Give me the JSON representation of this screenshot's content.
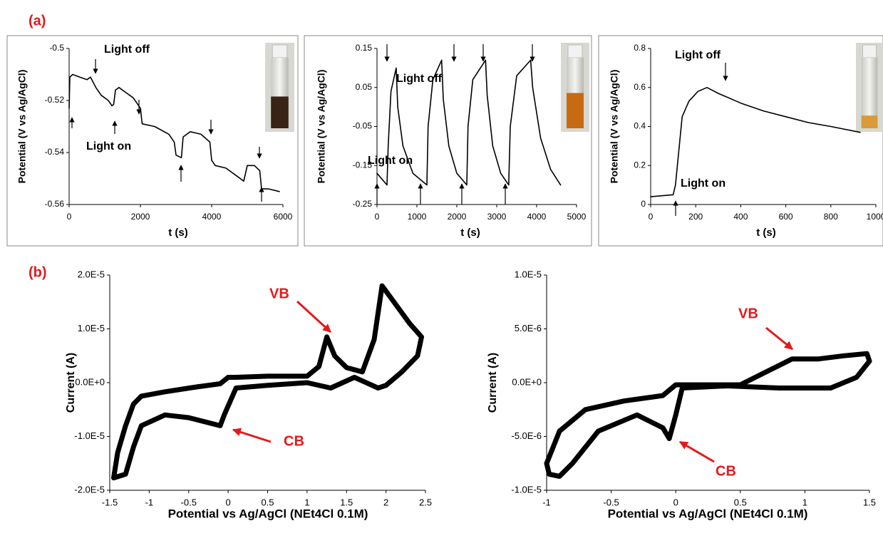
{
  "panel_labels": [
    "(a)",
    "(b)"
  ],
  "chart_data": [
    {
      "type": "line",
      "x_label": "t (s)",
      "y_label": "Potential (V vs Ag/AgCl)",
      "x": [
        0,
        20,
        100,
        300,
        500,
        600,
        750,
        900,
        1100,
        1200,
        1250,
        1300,
        1400,
        1600,
        1800,
        2000,
        2050,
        2400,
        2800,
        2950,
        3000,
        3150,
        3200,
        3400,
        3700,
        3950,
        4000,
        4100,
        4400,
        4700,
        4900,
        5000,
        5200,
        5350,
        5400,
        5600,
        5900
      ],
      "series": [
        {
          "color": "#000000",
          "values": [
            -0.523,
            -0.511,
            -0.51,
            -0.511,
            -0.512,
            -0.511,
            -0.515,
            -0.518,
            -0.52,
            -0.522,
            -0.5215,
            -0.516,
            -0.515,
            -0.517,
            -0.519,
            -0.523,
            -0.529,
            -0.53,
            -0.533,
            -0.536,
            -0.541,
            -0.542,
            -0.534,
            -0.532,
            -0.533,
            -0.536,
            -0.543,
            -0.545,
            -0.546,
            -0.549,
            -0.551,
            -0.545,
            -0.545,
            -0.547,
            -0.554,
            -0.554,
            -0.555
          ]
        }
      ],
      "xlim": [
        0,
        6000
      ],
      "ylim": [
        -0.56,
        -0.5
      ],
      "xticks": [
        0,
        2000,
        4000,
        6000
      ],
      "yticks": [
        -0.56,
        -0.54,
        -0.52,
        -0.5
      ],
      "annotations": [
        "Light off",
        "Light on"
      ]
    },
    {
      "type": "line",
      "x_label": "t (s)",
      "y_label": "Potential (V vs Ag/AgCl)",
      "x": [
        0,
        250,
        280,
        350,
        480,
        520,
        650,
        900,
        1250,
        1280,
        1400,
        1620,
        1660,
        1800,
        2000,
        2250,
        2280,
        2400,
        2720,
        2760,
        2900,
        3100,
        3300,
        3340,
        3500,
        3850,
        3900,
        4100,
        4350,
        4600
      ],
      "series": [
        {
          "color": "#000000",
          "values": [
            -0.17,
            -0.2,
            -0.1,
            0.04,
            0.1,
            0.0,
            -0.1,
            -0.17,
            -0.2,
            -0.05,
            0.07,
            0.12,
            0.02,
            -0.1,
            -0.17,
            -0.2,
            -0.05,
            0.07,
            0.12,
            0.03,
            -0.1,
            -0.17,
            -0.2,
            -0.05,
            0.08,
            0.12,
            0.05,
            -0.08,
            -0.16,
            -0.2
          ]
        }
      ],
      "xlim": [
        0,
        5000
      ],
      "ylim": [
        -0.25,
        0.15
      ],
      "xticks": [
        0,
        1000,
        2000,
        3000,
        4000,
        5000
      ],
      "yticks": [
        -0.25,
        -0.15,
        -0.05,
        0.05,
        0.15
      ],
      "annotations": [
        "Light off",
        "Light on"
      ]
    },
    {
      "type": "line",
      "x_label": "t (s)",
      "y_label": "Potential (V vs Ag/AgCl)",
      "x": [
        0,
        100,
        110,
        140,
        170,
        210,
        250,
        300,
        400,
        500,
        600,
        700,
        800,
        930
      ],
      "series": [
        {
          "color": "#000000",
          "values": [
            0.04,
            0.05,
            0.1,
            0.45,
            0.53,
            0.58,
            0.6,
            0.57,
            0.52,
            0.48,
            0.45,
            0.42,
            0.4,
            0.37
          ]
        }
      ],
      "xlim": [
        0,
        1000
      ],
      "ylim": [
        0,
        0.8
      ],
      "xticks": [
        0,
        200,
        400,
        600,
        800,
        1000
      ],
      "yticks": [
        0,
        0.2,
        0.4,
        0.6,
        0.8
      ],
      "annotations": [
        "Light off",
        "Light on"
      ]
    },
    {
      "type": "line",
      "x_label": "Potential vs Ag/AgCl (NEt4Cl 0.1M)",
      "y_label": "Current (A)",
      "x": [
        -1.45,
        -1.4,
        -1.3,
        -1.2,
        -1.1,
        -0.8,
        -0.4,
        -0.1,
        0,
        0.1,
        0.5,
        1.0,
        1.15,
        1.25,
        1.35,
        1.5,
        1.7,
        1.85,
        1.95,
        2.05,
        2.3,
        2.45,
        2.4,
        2.2,
        2.0,
        1.9,
        1.6,
        1.3,
        1.0,
        0.5,
        0.1,
        -0.05,
        -0.1,
        -0.5,
        -0.8,
        -1.1,
        -1.2,
        -1.3,
        -1.45
      ],
      "series": [
        {
          "color": "#000000",
          "values": [
            -1.77e-05,
            -1.3e-05,
            -8e-06,
            -4e-06,
            -2.5e-06,
            -1.7e-06,
            -8e-07,
            -2e-07,
            1e-06,
            1e-06,
            1.2e-06,
            1.2e-06,
            3e-06,
            8.5e-06,
            5e-06,
            2.8e-06,
            2e-06,
            8e-06,
            1.8e-05,
            1.6e-05,
            1.1e-05,
            8.5e-06,
            5e-06,
            2e-06,
            -5e-07,
            -1e-06,
            1e-06,
            -1e-06,
            0,
            -5e-07,
            -1e-06,
            -6e-06,
            -8e-06,
            -6.5e-06,
            -6e-06,
            -8e-06,
            -1.2e-05,
            -1.7e-05,
            -1.77e-05
          ]
        }
      ],
      "xlim": [
        -1.5,
        2.5
      ],
      "ylim": [
        -2e-05,
        2e-05
      ],
      "xticks": [
        -1.5,
        -1,
        -0.5,
        0,
        0.5,
        1,
        1.5,
        2,
        2.5
      ],
      "yticks": [
        {
          "value": -2e-05,
          "label": "-2.0E-5"
        },
        {
          "value": -1e-05,
          "label": "-1.0E-5"
        },
        {
          "value": 0,
          "label": "0.0E+0"
        },
        {
          "value": 1e-05,
          "label": "1.0E-5"
        },
        {
          "value": 2e-05,
          "label": "2.0E-5"
        }
      ],
      "annotations": [
        "VB",
        "CB"
      ]
    },
    {
      "type": "line",
      "x_label": "Potential vs Ag/AgCl (NEt4Cl 0.1M)",
      "y_label": "Current (A)",
      "x": [
        -1,
        -0.9,
        -0.7,
        -0.4,
        -0.1,
        0,
        0.5,
        0.7,
        0.9,
        1.1,
        1.3,
        1.48,
        1.5,
        1.4,
        1.2,
        0.8,
        0.4,
        0.05,
        0,
        -0.05,
        -0.1,
        -0.3,
        -0.6,
        -0.8,
        -0.9,
        -0.98,
        -1
      ],
      "series": [
        {
          "color": "#000000",
          "values": [
            -7.5e-06,
            -4.5e-06,
            -2.5e-06,
            -1.7e-06,
            -1.2e-06,
            -2e-07,
            -2e-07,
            1e-06,
            2.2e-06,
            2.2e-06,
            2.5e-06,
            2.7e-06,
            2e-06,
            5e-07,
            -5e-07,
            -5e-07,
            -3e-07,
            -5e-07,
            -3e-06,
            -5.2e-06,
            -4.2e-06,
            -3e-06,
            -4.5e-06,
            -7.5e-06,
            -8.7e-06,
            -8.5e-06,
            -7.5e-06
          ]
        }
      ],
      "xlim": [
        -1,
        1.5
      ],
      "ylim": [
        -1e-05,
        1e-05
      ],
      "xticks": [
        -1,
        -0.5,
        0,
        0.5,
        1,
        1.5
      ],
      "yticks": [
        {
          "value": -1e-05,
          "label": "-1.0E-5"
        },
        {
          "value": -5e-06,
          "label": "-5.0E-6"
        },
        {
          "value": 0,
          "label": "0.0E+0"
        },
        {
          "value": 5e-06,
          "label": "5.0E-6"
        },
        {
          "value": 1e-05,
          "label": "1.0E-5"
        }
      ],
      "annotations": [
        "VB",
        "CB"
      ]
    }
  ]
}
